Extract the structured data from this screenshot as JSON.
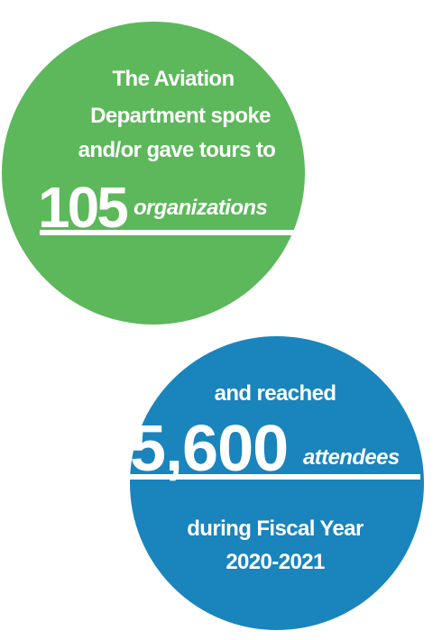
{
  "green_circle": {
    "lines": [
      "The Aviation",
      "Department spoke",
      "and/or gave tours to"
    ],
    "number": "105",
    "unit": "organizations"
  },
  "blue_circle": {
    "intro": "and reached",
    "number": "5,600",
    "unit": "attendees",
    "outro": [
      "during Fiscal Year",
      "2020-2021"
    ]
  }
}
